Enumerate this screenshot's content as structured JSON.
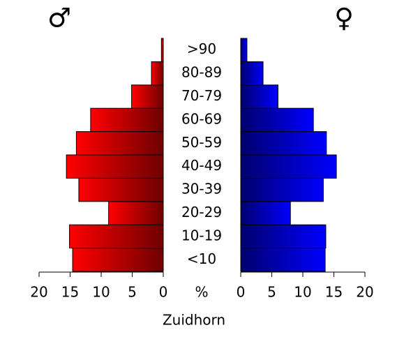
{
  "chart_data": {
    "type": "pyramid",
    "title": "Zuidhorn",
    "axis_label": "%",
    "categories": [
      "<10",
      "10-19",
      "20-29",
      "30-39",
      "40-49",
      "50-59",
      "60-69",
      "70-79",
      "80-89",
      ">90"
    ],
    "series": [
      {
        "name": "♂",
        "color": "#ff0000",
        "values": [
          14.6,
          15.1,
          8.8,
          13.6,
          15.6,
          14.0,
          11.7,
          5.1,
          1.9,
          0.3
        ]
      },
      {
        "name": "♀",
        "color": "#0000ff",
        "values": [
          13.6,
          13.7,
          8.0,
          13.3,
          15.4,
          13.8,
          11.7,
          6.0,
          3.6,
          1.0
        ]
      }
    ],
    "xlim": [
      0,
      20
    ],
    "xticks": [
      0,
      5,
      10,
      15,
      20
    ]
  }
}
